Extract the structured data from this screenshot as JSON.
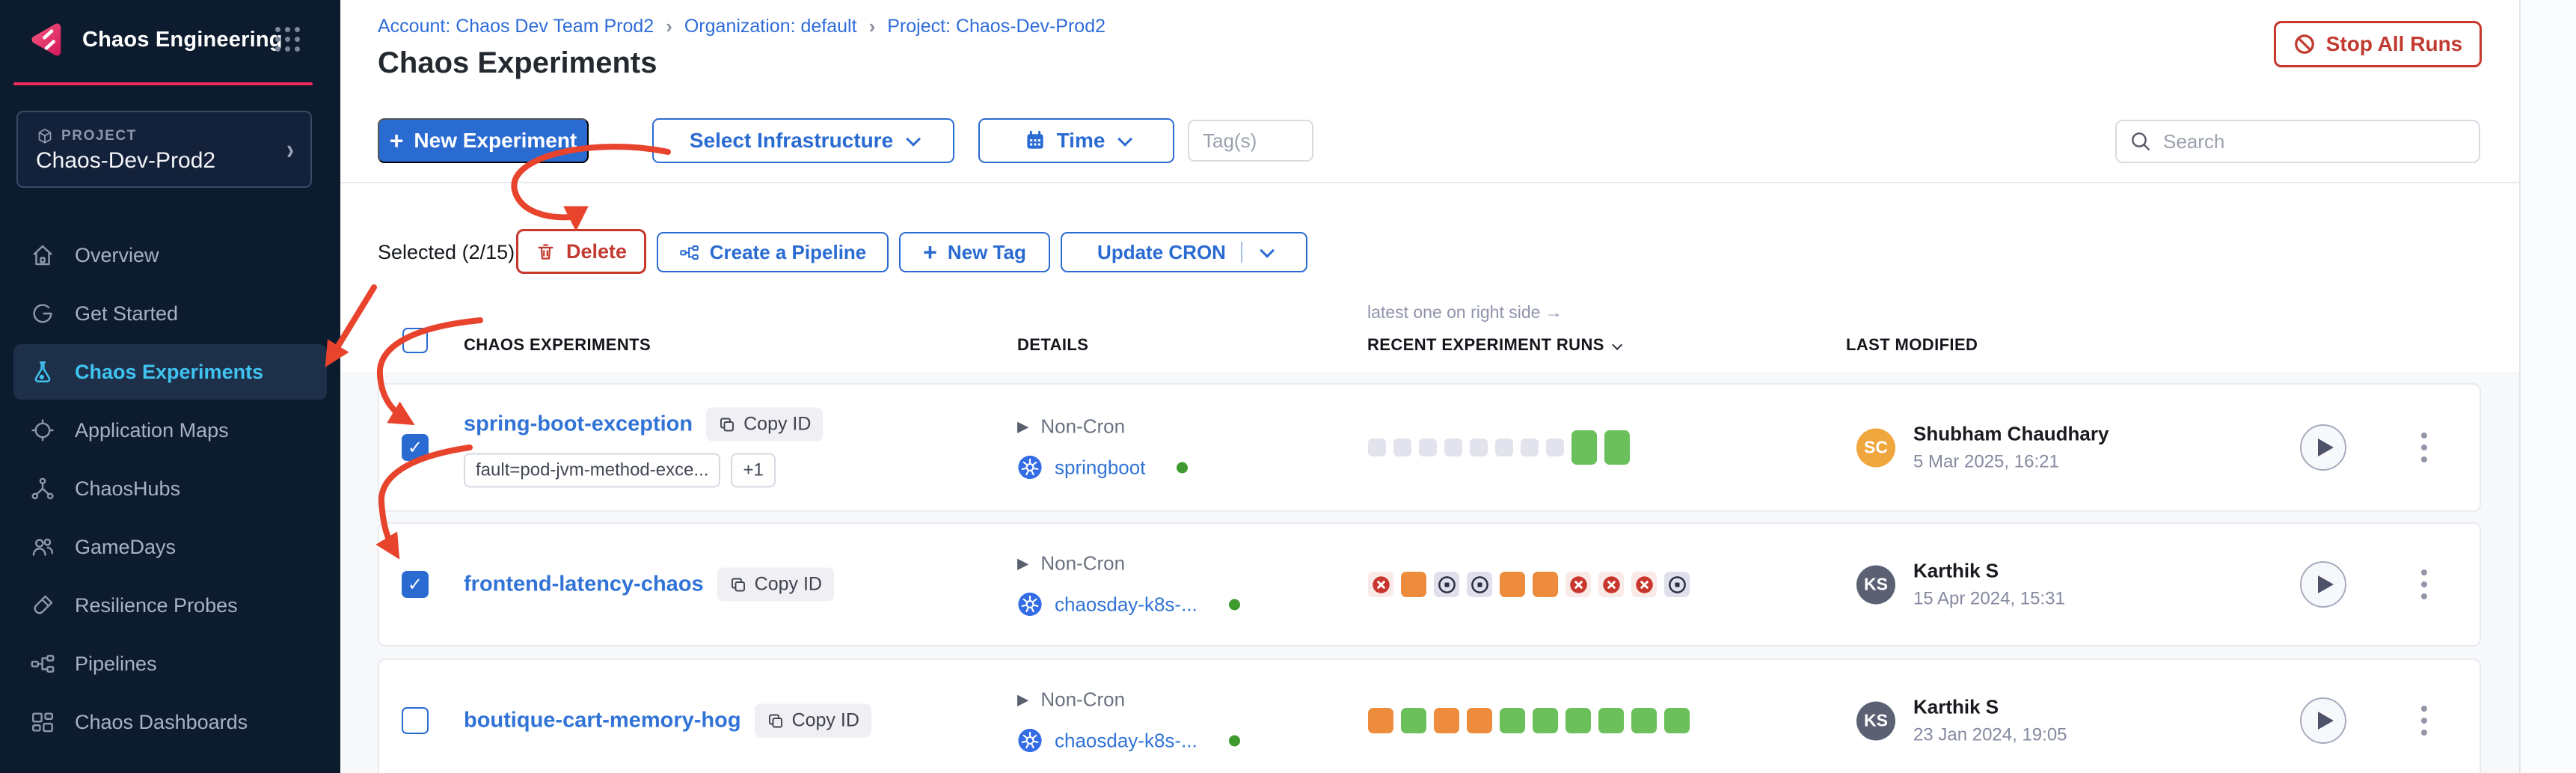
{
  "app": {
    "title": "Chaos Engineering"
  },
  "icons": {
    "plus": "+",
    "check": "✓",
    "expand": "▶",
    "chevron": "›",
    "project_chevron": "›"
  },
  "sidebar": {
    "project_label": "PROJECT",
    "project_name": "Chaos-Dev-Prod2",
    "items": [
      {
        "label": "Overview",
        "icon": "home",
        "active": false
      },
      {
        "label": "Get Started",
        "icon": "get-started",
        "active": false
      },
      {
        "label": "Chaos Experiments",
        "icon": "flask",
        "active": true
      },
      {
        "label": "Application Maps",
        "icon": "app-maps",
        "active": false
      },
      {
        "label": "ChaosHubs",
        "icon": "hubs",
        "active": false
      },
      {
        "label": "GameDays",
        "icon": "gamedays",
        "active": false
      },
      {
        "label": "Resilience Probes",
        "icon": "probe",
        "active": false
      },
      {
        "label": "Pipelines",
        "icon": "pipelines",
        "active": false
      },
      {
        "label": "Chaos Dashboards",
        "icon": "dashboards",
        "active": false
      }
    ]
  },
  "breadcrumb": {
    "separator": "›",
    "items": [
      "Account: Chaos Dev Team Prod2",
      "Organization: default",
      "Project: Chaos-Dev-Prod2"
    ]
  },
  "header": {
    "title": "Chaos Experiments",
    "stop_all_runs": "Stop All Runs"
  },
  "toolbar": {
    "new_experiment": "New Experiment",
    "select_infrastructure": "Select Infrastructure",
    "time": "Time",
    "tags_placeholder": "Tag(s)",
    "search_placeholder": "Search"
  },
  "selection": {
    "label": "Selected (2/15)",
    "delete": "Delete",
    "create_pipeline": "Create a Pipeline",
    "new_tag": "New Tag",
    "update_cron": "Update CRON"
  },
  "table": {
    "note": "latest one on right side →",
    "col_experiments": "CHAOS EXPERIMENTS",
    "col_details": "DETAILS",
    "col_runs": "RECENT EXPERIMENT RUNS",
    "col_modified": "LAST MODIFIED",
    "rows": [
      {
        "selected": true,
        "name": "spring-boot-exception",
        "copy_label": "Copy ID",
        "tag": "fault=pod-jvm-method-exce...",
        "tag_more": "+1",
        "schedule": "Non-Cron",
        "infra": "springboot",
        "runs": [
          "empty",
          "empty",
          "empty",
          "empty",
          "empty",
          "empty",
          "empty",
          "empty",
          "green-lg",
          "green-lg"
        ],
        "avatar": {
          "initials": "SC",
          "color": "#efa63d"
        },
        "modified_by": "Shubham Chaudhary",
        "modified_at": "5 Mar 2025, 16:21"
      },
      {
        "selected": true,
        "name": "frontend-latency-chaos",
        "copy_label": "Copy ID",
        "schedule": "Non-Cron",
        "infra": "chaosday-k8s-...",
        "runs": [
          "failed",
          "orange",
          "stopped",
          "stopped",
          "orange",
          "orange",
          "failed",
          "failed",
          "failed",
          "stopped"
        ],
        "avatar": {
          "initials": "KS",
          "color": "#5b6173"
        },
        "modified_by": "Karthik S",
        "modified_at": "15 Apr 2024, 15:31"
      },
      {
        "selected": false,
        "name": "boutique-cart-memory-hog",
        "copy_label": "Copy ID",
        "schedule": "Non-Cron",
        "infra": "chaosday-k8s-...",
        "runs": [
          "orange",
          "green",
          "orange",
          "orange",
          "green",
          "green",
          "green",
          "green",
          "green",
          "green"
        ],
        "avatar": {
          "initials": "KS",
          "color": "#5b6173"
        },
        "modified_by": "Karthik S",
        "modified_at": "23 Jan 2024, 19:05"
      }
    ]
  },
  "colors": {
    "sidebar_bg": "#0d1b2f",
    "accent_pink": "#ee2b5e",
    "active_cyan": "#40c3f1",
    "primary_blue": "#2a6bd2",
    "danger_red": "#c23b31",
    "annotation_red": "#e8432c",
    "success_green": "#6cc05c",
    "warning_orange": "#ec8c3c",
    "k8s_blue": "#336ce4"
  }
}
